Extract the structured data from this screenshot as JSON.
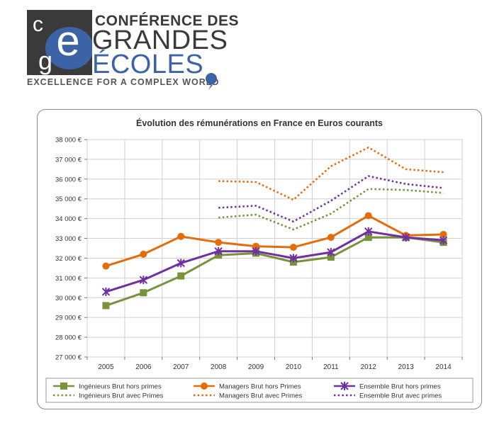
{
  "logo": {
    "line1": "CONFÉRENCE DES",
    "line2": "GRANDES",
    "line3": "ÉCOLES",
    "tagline": "EXCELLENCE FOR A COMPLEX WORLD",
    "mark_letters": "cge",
    "colors": {
      "dark": "#3a3a3a",
      "blue": "#3b63a6"
    }
  },
  "chart_data": {
    "type": "line",
    "title": "Évolution des rémunérations en France en Euros courants",
    "xlabel": "",
    "ylabel": "",
    "x": [
      "2005",
      "2006",
      "2007",
      "2008",
      "2009",
      "2010",
      "2011",
      "2012",
      "2013",
      "2014"
    ],
    "ylim": [
      27000,
      38000
    ],
    "yticks": [
      {
        "value": 27000,
        "label": "27 000 €"
      },
      {
        "value": 28000,
        "label": "28 000 €"
      },
      {
        "value": 29000,
        "label": "29 000 €"
      },
      {
        "value": 30000,
        "label": "30 000 €"
      },
      {
        "value": 31000,
        "label": "31 000 €"
      },
      {
        "value": 32000,
        "label": "32 000 €"
      },
      {
        "value": 33000,
        "label": "33 000 €"
      },
      {
        "value": 34000,
        "label": "34 000 €"
      },
      {
        "value": 35000,
        "label": "35 000 €"
      },
      {
        "value": 36000,
        "label": "36 000 €"
      },
      {
        "value": 37000,
        "label": "37 000 €"
      },
      {
        "value": 38000,
        "label": "38 000 €"
      }
    ],
    "grid": true,
    "legend_position": "bottom",
    "series": [
      {
        "name": "Ingénieurs Brut hors primes",
        "color": "#77933c",
        "style": "solid",
        "marker": "square",
        "values": [
          29600,
          30250,
          31100,
          32150,
          32250,
          31800,
          32050,
          33050,
          33050,
          32800
        ]
      },
      {
        "name": "Managers Brut hors Primes",
        "color": "#e46c0a",
        "style": "solid",
        "marker": "circle",
        "values": [
          31600,
          32200,
          33100,
          32800,
          32600,
          32550,
          33050,
          34150,
          33150,
          33200
        ]
      },
      {
        "name": "Ensemble Brut hors primes",
        "color": "#7030a0",
        "style": "solid",
        "marker": "asterisk",
        "values": [
          30300,
          30900,
          31750,
          32350,
          32350,
          32000,
          32300,
          33350,
          33050,
          32900
        ]
      },
      {
        "name": "Ingénieurs Brut avec Primes",
        "color": "#77933c",
        "style": "dotted",
        "marker": "none",
        "values": [
          null,
          null,
          null,
          34050,
          34200,
          33450,
          34250,
          35500,
          35450,
          35300
        ]
      },
      {
        "name": "Managers Brut avec Primes",
        "color": "#e46c0a",
        "style": "dotted",
        "marker": "none",
        "values": [
          null,
          null,
          null,
          35900,
          35850,
          34950,
          36650,
          37600,
          36500,
          36350
        ]
      },
      {
        "name": "Ensemble Brut avec primes",
        "color": "#7030a0",
        "style": "dotted",
        "marker": "none",
        "values": [
          null,
          null,
          null,
          34550,
          34650,
          33850,
          34900,
          36150,
          35750,
          35550
        ]
      }
    ]
  }
}
